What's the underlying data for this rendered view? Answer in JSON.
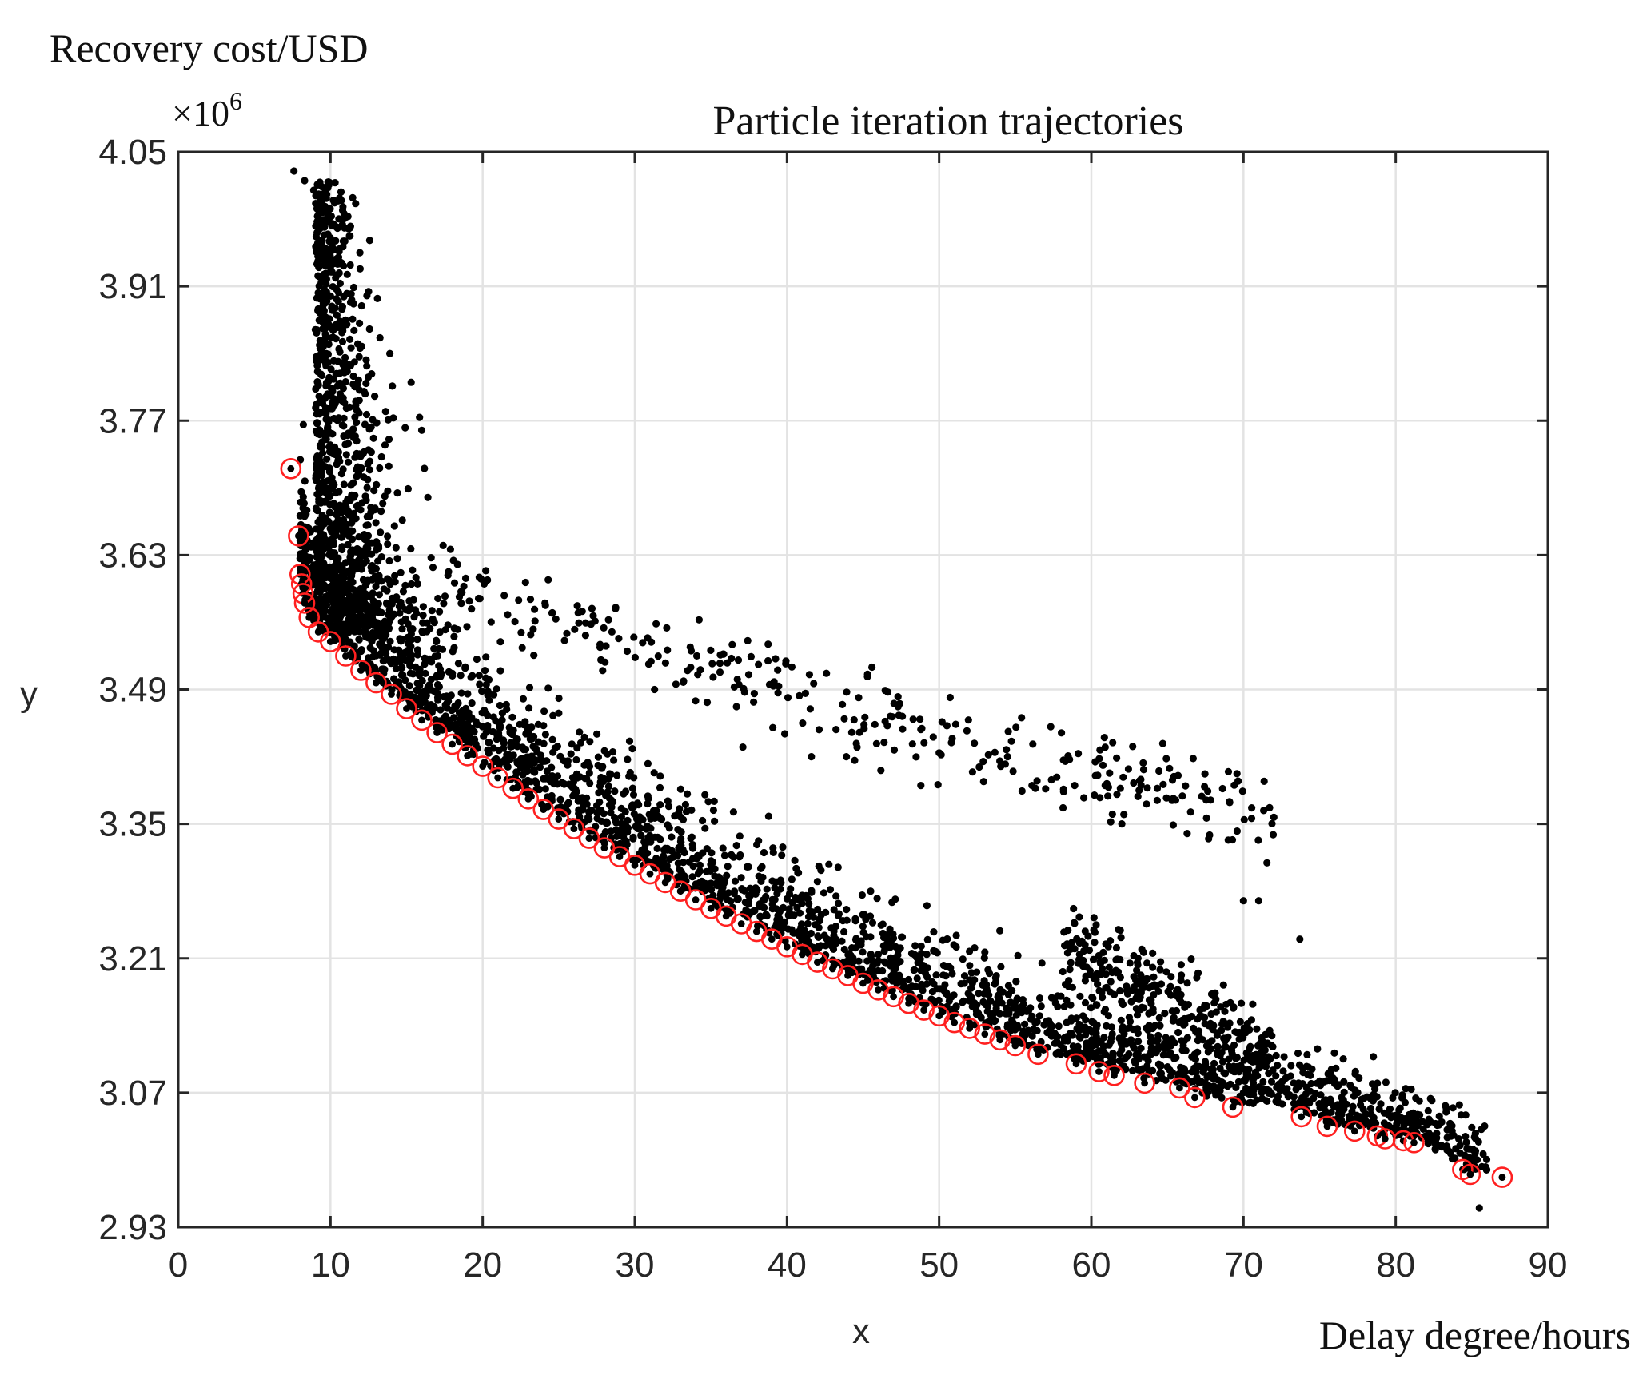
{
  "chart_data": {
    "type": "scatter",
    "title": "Particle iteration trajectories",
    "xlabel": "x",
    "ylabel": "y",
    "x_axis_caption": "Delay degree/hours",
    "y_axis_caption": "Recovery cost/USD",
    "y_multiplier": "×10",
    "y_multiplier_exp": "6",
    "xlim": [
      0,
      90
    ],
    "ylim": [
      2.93,
      4.05
    ],
    "xticks": [
      "0",
      "10",
      "20",
      "30",
      "40",
      "50",
      "60",
      "70",
      "80",
      "90"
    ],
    "yticks": [
      "2.93",
      "3.07",
      "3.21",
      "3.35",
      "3.49",
      "3.63",
      "3.77",
      "3.91",
      "4.05"
    ],
    "grid": true,
    "colors": {
      "particles": "#000000",
      "pareto": "#ff2020",
      "grid": "#e3e3e3",
      "axis": "#262626"
    },
    "series": [
      {
        "role": "particles",
        "marker": "dot",
        "band_main": {
          "x_range": [
            8,
            86
          ],
          "description": "dense cloud just above the Pareto front"
        },
        "band_upper": {
          "x_range": [
            15,
            72
          ]
        },
        "column_near_x": 9,
        "points": [
          [
            7.6,
            4.03
          ],
          [
            8.3,
            4.02
          ],
          [
            8.9,
            4.01
          ],
          [
            9.3,
            3.97
          ],
          [
            13.9,
            3.84
          ],
          [
            15.3,
            3.81
          ],
          [
            16.0,
            3.76
          ],
          [
            16.4,
            3.69
          ],
          [
            17.4,
            3.64
          ],
          [
            20.1,
            3.6
          ],
          [
            24.1,
            3.58
          ],
          [
            28.5,
            3.55
          ],
          [
            29.5,
            3.53
          ],
          [
            31.3,
            3.49
          ],
          [
            37.1,
            3.43
          ],
          [
            41.6,
            3.42
          ],
          [
            43.9,
            3.42
          ],
          [
            48.8,
            3.39
          ],
          [
            54.5,
            3.42
          ],
          [
            56.1,
            3.39
          ],
          [
            58.9,
            3.39
          ],
          [
            60.2,
            3.38
          ],
          [
            62.0,
            3.35
          ],
          [
            66.3,
            3.34
          ],
          [
            70.0,
            3.27
          ],
          [
            71.0,
            3.27
          ],
          [
            73.7,
            3.23
          ],
          [
            45.5,
            3.28
          ],
          [
            42.0,
            3.29
          ],
          [
            58.9,
            3.22
          ],
          [
            63.8,
            3.14
          ],
          [
            66.8,
            3.11
          ],
          [
            77.5,
            3.07
          ],
          [
            80.5,
            3.04
          ],
          [
            84.5,
            2.99
          ],
          [
            85.5,
            2.95
          ]
        ]
      },
      {
        "name": "",
        "role": "pareto-front",
        "marker": "open-circle",
        "points": [
          [
            7.4,
            3.72
          ],
          [
            7.9,
            3.65
          ],
          [
            8.0,
            3.61
          ],
          [
            8.1,
            3.6
          ],
          [
            8.2,
            3.59
          ],
          [
            8.3,
            3.58
          ],
          [
            8.6,
            3.565
          ],
          [
            9.2,
            3.55
          ],
          [
            10.0,
            3.54
          ],
          [
            11.0,
            3.525
          ],
          [
            12.0,
            3.51
          ],
          [
            13.0,
            3.497
          ],
          [
            14.0,
            3.485
          ],
          [
            15.0,
            3.47
          ],
          [
            16.0,
            3.458
          ],
          [
            17.0,
            3.445
          ],
          [
            18.0,
            3.433
          ],
          [
            19.0,
            3.421
          ],
          [
            20.0,
            3.41
          ],
          [
            21.0,
            3.398
          ],
          [
            22.0,
            3.387
          ],
          [
            23.0,
            3.376
          ],
          [
            24.0,
            3.365
          ],
          [
            25.0,
            3.355
          ],
          [
            26.0,
            3.345
          ],
          [
            27.0,
            3.335
          ],
          [
            28.0,
            3.325
          ],
          [
            29.0,
            3.316
          ],
          [
            30.0,
            3.307
          ],
          [
            31.0,
            3.298
          ],
          [
            32.0,
            3.289
          ],
          [
            33.0,
            3.28
          ],
          [
            34.0,
            3.271
          ],
          [
            35.0,
            3.262
          ],
          [
            36.0,
            3.254
          ],
          [
            37.0,
            3.246
          ],
          [
            38.0,
            3.238
          ],
          [
            39.0,
            3.23
          ],
          [
            40.0,
            3.222
          ],
          [
            41.0,
            3.214
          ],
          [
            42.0,
            3.206
          ],
          [
            43.0,
            3.199
          ],
          [
            44.0,
            3.192
          ],
          [
            45.0,
            3.184
          ],
          [
            46.0,
            3.177
          ],
          [
            47.0,
            3.17
          ],
          [
            48.0,
            3.163
          ],
          [
            49.0,
            3.156
          ],
          [
            50.0,
            3.15
          ],
          [
            51.0,
            3.143
          ],
          [
            52.0,
            3.137
          ],
          [
            53.0,
            3.131
          ],
          [
            54.0,
            3.125
          ],
          [
            55.0,
            3.119
          ],
          [
            56.5,
            3.11
          ],
          [
            59.0,
            3.1
          ],
          [
            60.5,
            3.092
          ],
          [
            61.5,
            3.088
          ],
          [
            63.5,
            3.08
          ],
          [
            65.8,
            3.075
          ],
          [
            66.8,
            3.065
          ],
          [
            69.3,
            3.055
          ],
          [
            73.8,
            3.045
          ],
          [
            75.5,
            3.035
          ],
          [
            77.3,
            3.03
          ],
          [
            78.8,
            3.025
          ],
          [
            79.3,
            3.022
          ],
          [
            80.5,
            3.02
          ],
          [
            81.2,
            3.018
          ],
          [
            84.4,
            2.99
          ],
          [
            84.9,
            2.985
          ],
          [
            87.0,
            2.982
          ]
        ]
      }
    ]
  }
}
